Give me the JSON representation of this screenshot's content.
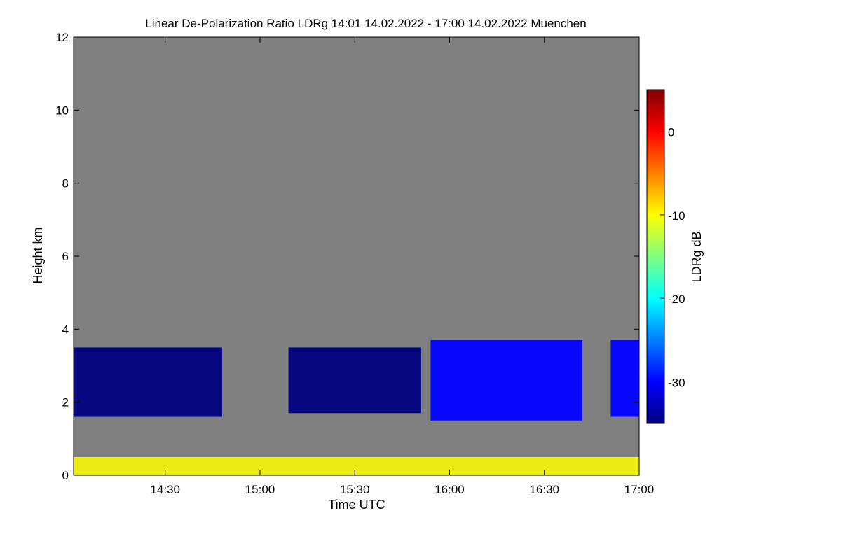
{
  "chart_data": {
    "type": "heatmap",
    "title": "Linear De-Polarization Ratio LDRg   14:01 14.02.2022 - 17:00 14.02.2022 Muenchen",
    "xlabel": "Time UTC",
    "ylabel": "Height km",
    "x_range_hours": [
      14.0167,
      17.0
    ],
    "ylim": [
      0,
      12
    ],
    "x_ticks": [
      {
        "label": "14:30",
        "hours": 14.5
      },
      {
        "label": "15:00",
        "hours": 15.0
      },
      {
        "label": "15:30",
        "hours": 15.5
      },
      {
        "label": "16:00",
        "hours": 16.0
      },
      {
        "label": "16:30",
        "hours": 16.5
      },
      {
        "label": "17:00",
        "hours": 17.0
      }
    ],
    "y_ticks": [
      0,
      2,
      4,
      6,
      8,
      10,
      12
    ],
    "colorbar": {
      "label": "LDRg dB",
      "range": [
        -35,
        5
      ],
      "ticks": [
        "0",
        "-10",
        "-20",
        "-30"
      ],
      "tick_values": [
        0,
        -10,
        -20,
        -30
      ],
      "colormap": [
        "#00007f",
        "#0000ff",
        "#007fff",
        "#00ffff",
        "#7fff7f",
        "#ffff00",
        "#ff7f00",
        "#ff0000",
        "#7f0000"
      ]
    },
    "background_color": "#808080",
    "cloud_layers": [
      {
        "name": "cloud-layer-1",
        "start": 14.02,
        "end": 14.8,
        "base_km": 1.6,
        "top_km": 3.5,
        "ldr_db": -33
      },
      {
        "name": "cloud-layer-2",
        "start": 15.15,
        "end": 15.85,
        "base_km": 1.7,
        "top_km": 3.5,
        "ldr_db": -33
      },
      {
        "name": "cloud-layer-3",
        "start": 15.9,
        "end": 16.7,
        "base_km": 1.5,
        "top_km": 3.7,
        "ldr_db": -30
      },
      {
        "name": "cloud-layer-4",
        "start": 16.85,
        "end": 17.0,
        "base_km": 1.6,
        "top_km": 3.7,
        "ldr_db": -28
      }
    ],
    "boundary_layer": {
      "base_km": 0.0,
      "top_km": 0.5,
      "ldr_db": -12
    }
  }
}
